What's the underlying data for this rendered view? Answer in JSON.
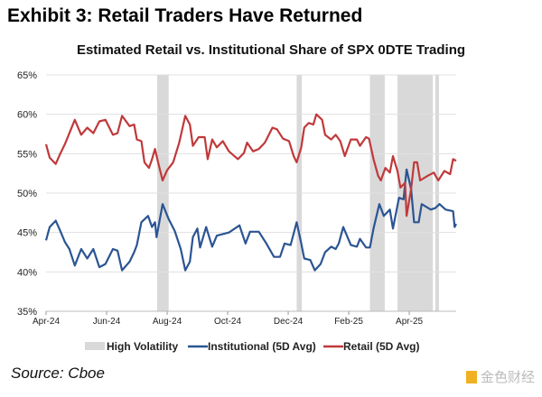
{
  "title": "Exhibit 3: Retail Traders Have Returned",
  "source": "Source: Cboe",
  "watermark": "金色财经",
  "chart_data": {
    "type": "line",
    "title": "Estimated Retail vs. Institutional Share of SPX 0DTE Trading",
    "xlabel": "",
    "ylabel": "",
    "x_unit": "months since Apr-24",
    "xlim": [
      0,
      13.55
    ],
    "ylim": [
      35,
      65
    ],
    "yticks": [
      35,
      40,
      45,
      50,
      55,
      60,
      65
    ],
    "ytick_labels": [
      "35%",
      "40%",
      "45%",
      "50%",
      "55%",
      "60%",
      "65%"
    ],
    "xticks": [
      0,
      2,
      4,
      6,
      8,
      10,
      12
    ],
    "xtick_labels": [
      "Apr-24",
      "Jun-24",
      "Aug-24",
      "Oct-24",
      "Dec-24",
      "Feb-25",
      "Apr-25"
    ],
    "grid": "horizontal",
    "legend_position": "bottom",
    "bands": {
      "name": "High Volatility",
      "color": "#d9d9d9",
      "ranges": [
        [
          3.67,
          4.05
        ],
        [
          8.28,
          8.45
        ],
        [
          10.7,
          11.19
        ],
        [
          11.61,
          12.78
        ],
        [
          12.86,
          12.98
        ]
      ]
    },
    "series": [
      {
        "name": "Institutional (5D Avg)",
        "color": "#2b5593",
        "points": [
          [
            0,
            44
          ],
          [
            0.12,
            45.7
          ],
          [
            0.32,
            46.5
          ],
          [
            0.47,
            45.2
          ],
          [
            0.62,
            43.8
          ],
          [
            0.77,
            42.9
          ],
          [
            0.95,
            40.8
          ],
          [
            1.16,
            42.9
          ],
          [
            1.36,
            41.7
          ],
          [
            1.56,
            42.9
          ],
          [
            1.76,
            40.6
          ],
          [
            1.96,
            41
          ],
          [
            2.21,
            42.9
          ],
          [
            2.36,
            42.7
          ],
          [
            2.51,
            40.2
          ],
          [
            2.76,
            41.3
          ],
          [
            2.91,
            42.5
          ],
          [
            3.0,
            43.4
          ],
          [
            3.15,
            46.3
          ],
          [
            3.37,
            47.1
          ],
          [
            3.5,
            45.7
          ],
          [
            3.6,
            46.3
          ],
          [
            3.65,
            44.4
          ],
          [
            3.85,
            48.6
          ],
          [
            4.05,
            46.7
          ],
          [
            4.25,
            45.2
          ],
          [
            4.45,
            42.9
          ],
          [
            4.6,
            40.2
          ],
          [
            4.75,
            41.3
          ],
          [
            4.85,
            44.4
          ],
          [
            5.0,
            45.5
          ],
          [
            5.09,
            43.1
          ],
          [
            5.29,
            45.7
          ],
          [
            5.49,
            43.2
          ],
          [
            5.64,
            44.6
          ],
          [
            6.04,
            45
          ],
          [
            6.39,
            45.9
          ],
          [
            6.59,
            43.6
          ],
          [
            6.74,
            45.1
          ],
          [
            7.03,
            45.1
          ],
          [
            7.28,
            43.6
          ],
          [
            7.53,
            41.9
          ],
          [
            7.73,
            41.9
          ],
          [
            7.88,
            43.6
          ],
          [
            8.08,
            43.4
          ],
          [
            8.28,
            46.3
          ],
          [
            8.43,
            43.6
          ],
          [
            8.53,
            41.7
          ],
          [
            8.73,
            41.5
          ],
          [
            8.88,
            40.2
          ],
          [
            9.07,
            41
          ],
          [
            9.22,
            42.5
          ],
          [
            9.42,
            43.2
          ],
          [
            9.57,
            42.9
          ],
          [
            9.67,
            43.6
          ],
          [
            9.82,
            45.7
          ],
          [
            10.07,
            43.4
          ],
          [
            10.27,
            43.2
          ],
          [
            10.37,
            44.2
          ],
          [
            10.57,
            43.1
          ],
          [
            10.7,
            43.1
          ],
          [
            10.82,
            45.5
          ],
          [
            11.01,
            48.6
          ],
          [
            11.16,
            47.1
          ],
          [
            11.36,
            47.9
          ],
          [
            11.46,
            45.5
          ],
          [
            11.66,
            49.4
          ],
          [
            11.81,
            49.2
          ],
          [
            11.91,
            53
          ],
          [
            12.06,
            50.5
          ],
          [
            12.16,
            46.3
          ],
          [
            12.31,
            46.3
          ],
          [
            12.41,
            48.6
          ],
          [
            12.71,
            47.9
          ],
          [
            12.86,
            48.1
          ],
          [
            13.0,
            48.6
          ],
          [
            13.2,
            47.9
          ],
          [
            13.45,
            47.7
          ],
          [
            13.5,
            45.7
          ],
          [
            13.55,
            46.1
          ]
        ]
      },
      {
        "name": "Retail (5D Avg)",
        "color": "#c0393b",
        "points": [
          [
            0,
            56.2
          ],
          [
            0.12,
            54.5
          ],
          [
            0.32,
            53.7
          ],
          [
            0.47,
            55
          ],
          [
            0.62,
            56.2
          ],
          [
            0.77,
            57.6
          ],
          [
            0.95,
            59.3
          ],
          [
            1.16,
            57.4
          ],
          [
            1.36,
            58.3
          ],
          [
            1.56,
            57.6
          ],
          [
            1.76,
            59.1
          ],
          [
            1.96,
            59.3
          ],
          [
            2.21,
            57.4
          ],
          [
            2.36,
            57.6
          ],
          [
            2.51,
            59.8
          ],
          [
            2.76,
            58.5
          ],
          [
            2.91,
            58.7
          ],
          [
            3.0,
            56.8
          ],
          [
            3.15,
            56.6
          ],
          [
            3.25,
            53.9
          ],
          [
            3.4,
            53.2
          ],
          [
            3.5,
            54.3
          ],
          [
            3.6,
            55.6
          ],
          [
            3.7,
            53.9
          ],
          [
            3.85,
            51.6
          ],
          [
            4.0,
            52.9
          ],
          [
            4.2,
            53.9
          ],
          [
            4.4,
            56.4
          ],
          [
            4.6,
            59.8
          ],
          [
            4.75,
            58.7
          ],
          [
            4.85,
            56
          ],
          [
            5.04,
            57.1
          ],
          [
            5.24,
            57.1
          ],
          [
            5.34,
            54.3
          ],
          [
            5.49,
            56.8
          ],
          [
            5.64,
            55.8
          ],
          [
            5.84,
            56.6
          ],
          [
            6.04,
            55.3
          ],
          [
            6.34,
            54.3
          ],
          [
            6.54,
            55.1
          ],
          [
            6.64,
            56.4
          ],
          [
            6.84,
            55.3
          ],
          [
            7.03,
            55.6
          ],
          [
            7.23,
            56.4
          ],
          [
            7.48,
            58.3
          ],
          [
            7.63,
            58.1
          ],
          [
            7.83,
            56.9
          ],
          [
            8.03,
            56.6
          ],
          [
            8.18,
            54.7
          ],
          [
            8.28,
            53.9
          ],
          [
            8.43,
            55.8
          ],
          [
            8.53,
            58.3
          ],
          [
            8.68,
            58.9
          ],
          [
            8.83,
            58.7
          ],
          [
            8.93,
            60
          ],
          [
            9.12,
            59.3
          ],
          [
            9.22,
            57.4
          ],
          [
            9.42,
            56.8
          ],
          [
            9.57,
            57.4
          ],
          [
            9.72,
            56.6
          ],
          [
            9.87,
            54.7
          ],
          [
            10.07,
            56.8
          ],
          [
            10.27,
            56.8
          ],
          [
            10.37,
            56
          ],
          [
            10.57,
            57.1
          ],
          [
            10.67,
            56.9
          ],
          [
            10.82,
            54.3
          ],
          [
            10.97,
            52.2
          ],
          [
            11.06,
            51.6
          ],
          [
            11.21,
            53.2
          ],
          [
            11.36,
            52.6
          ],
          [
            11.46,
            54.7
          ],
          [
            11.61,
            52.8
          ],
          [
            11.71,
            50.7
          ],
          [
            11.86,
            51.3
          ],
          [
            11.91,
            47.1
          ],
          [
            12.06,
            50.5
          ],
          [
            12.16,
            53.9
          ],
          [
            12.26,
            53.9
          ],
          [
            12.36,
            51.6
          ],
          [
            12.61,
            52.2
          ],
          [
            12.81,
            52.6
          ],
          [
            12.96,
            51.6
          ],
          [
            13.16,
            52.8
          ],
          [
            13.35,
            52.4
          ],
          [
            13.45,
            54.3
          ],
          [
            13.55,
            54.1
          ]
        ]
      }
    ]
  }
}
